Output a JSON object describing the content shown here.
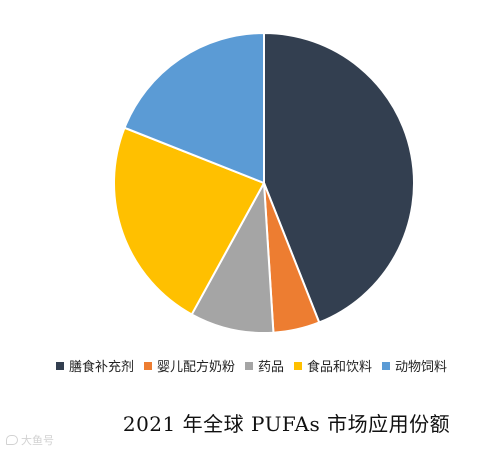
{
  "chart_data": {
    "type": "pie",
    "title": "2021 年全球 PUFAs 市场应用份额",
    "categories": [
      "膳食补充剂",
      "婴儿配方奶粉",
      "药品",
      "食品和饮料",
      "动物饲料"
    ],
    "values": [
      44,
      5,
      9,
      23,
      19
    ],
    "unit": "%",
    "colors": [
      "#333f50",
      "#ed7d31",
      "#a5a5a5",
      "#ffc000",
      "#5b9bd5"
    ],
    "start_angle_deg": 0,
    "direction": "clockwise",
    "legend_position": "bottom"
  },
  "legend": {
    "items": [
      {
        "label": "膳食补充剂",
        "color": "#333f50"
      },
      {
        "label": "婴儿配方奶粉",
        "color": "#ed7d31"
      },
      {
        "label": "药品",
        "color": "#a5a5a5"
      },
      {
        "label": "食品和饮料",
        "color": "#ffc000"
      },
      {
        "label": "动物饲料",
        "color": "#5b9bd5"
      }
    ]
  },
  "watermark": {
    "text": "大鱼号"
  }
}
